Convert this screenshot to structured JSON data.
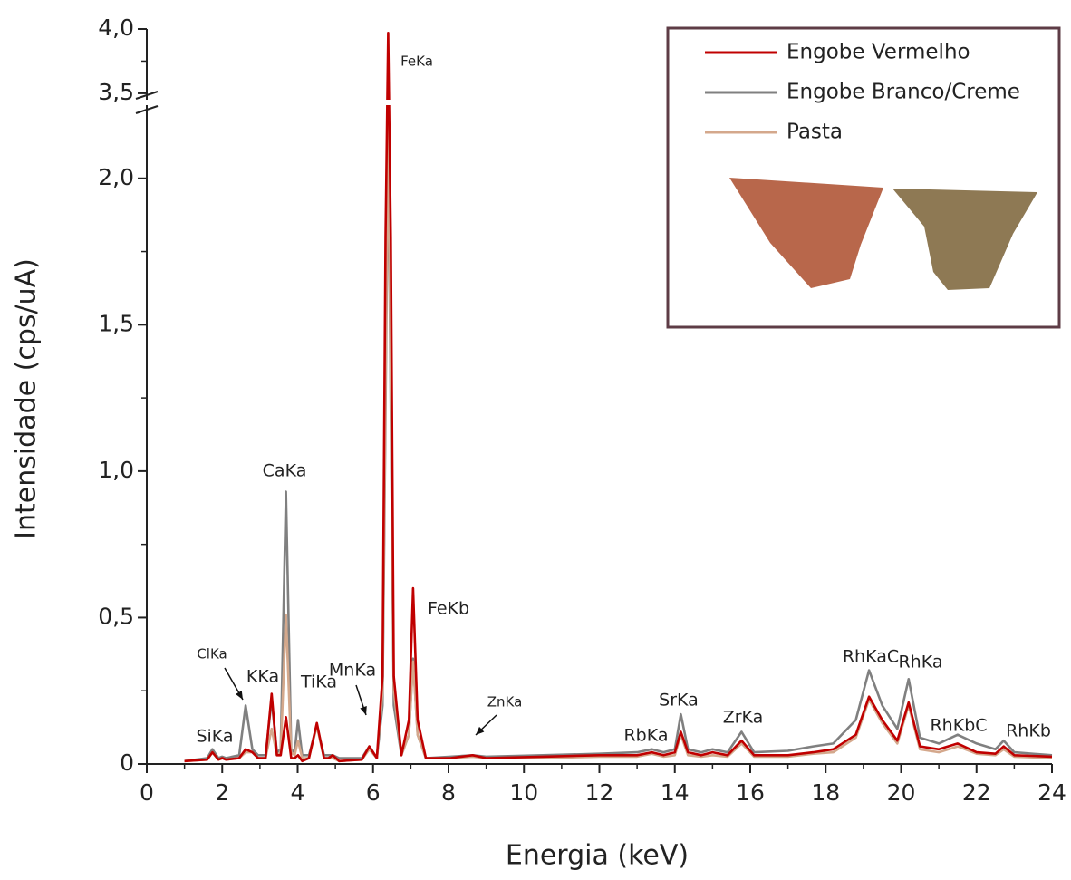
{
  "chart_data": {
    "type": "line",
    "xlabel": "Energia (keV)",
    "ylabel": "Intensidade (cps/uA)",
    "xlim": [
      0,
      24
    ],
    "xticks": [
      0,
      2,
      4,
      6,
      8,
      10,
      12,
      14,
      16,
      18,
      20,
      22,
      24
    ],
    "xminorticks": [
      1,
      3,
      5,
      7,
      9,
      11,
      13,
      15,
      17,
      19,
      21,
      23
    ],
    "ylim": [
      0,
      4.0
    ],
    "ybreak": [
      2.25,
      3.45
    ],
    "yticks": [
      0,
      {
        "value": 0.5,
        "label": "0,5"
      },
      {
        "value": 1.0,
        "label": "1,0"
      },
      {
        "value": 1.5,
        "label": "1,5"
      },
      {
        "value": 2.0,
        "label": "2,0"
      },
      {
        "value": 3.5,
        "label": "3,5"
      },
      {
        "value": 4.0,
        "label": "4,0"
      }
    ],
    "yminorticks": [
      0.25,
      0.75,
      1.25,
      1.75,
      3.75
    ],
    "legend": "upper right",
    "x": [
      1.0,
      1.6,
      1.74,
      1.9,
      2.0,
      2.1,
      2.45,
      2.62,
      2.8,
      2.95,
      3.15,
      3.31,
      3.45,
      3.55,
      3.69,
      3.83,
      3.92,
      4.01,
      4.12,
      4.3,
      4.51,
      4.7,
      4.82,
      4.93,
      5.1,
      5.7,
      5.9,
      6.1,
      6.25,
      6.33,
      6.4,
      6.47,
      6.55,
      6.75,
      6.95,
      7.06,
      7.18,
      7.4,
      8.05,
      8.64,
      9.0,
      10.5,
      12.0,
      13.0,
      13.39,
      13.7,
      14.0,
      14.16,
      14.35,
      14.7,
      15.0,
      15.4,
      15.77,
      16.1,
      17.0,
      17.67,
      18.2,
      18.8,
      19.15,
      19.5,
      19.9,
      20.2,
      20.5,
      21.0,
      21.5,
      22.0,
      22.5,
      22.72,
      23.0,
      24.0
    ],
    "series": [
      {
        "name": "Engobe Branco/Creme",
        "color": "#808080",
        "values": [
          0.01,
          0.02,
          0.05,
          0.02,
          0.025,
          0.02,
          0.03,
          0.2,
          0.05,
          0.03,
          0.03,
          0.22,
          0.04,
          0.05,
          0.93,
          0.05,
          0.04,
          0.15,
          0.03,
          0.03,
          0.13,
          0.03,
          0.03,
          0.03,
          0.02,
          0.02,
          0.06,
          0.02,
          0.2,
          1.2,
          2.17,
          1.2,
          0.2,
          0.03,
          0.1,
          0.36,
          0.1,
          0.02,
          0.025,
          0.03,
          0.025,
          0.03,
          0.035,
          0.04,
          0.05,
          0.04,
          0.05,
          0.17,
          0.05,
          0.04,
          0.05,
          0.04,
          0.11,
          0.04,
          0.045,
          0.06,
          0.07,
          0.15,
          0.32,
          0.2,
          0.12,
          0.29,
          0.09,
          0.07,
          0.1,
          0.07,
          0.05,
          0.08,
          0.04,
          0.03
        ]
      },
      {
        "name": "Pasta",
        "color": "#d4a88c",
        "values": [
          0.01,
          0.015,
          0.04,
          0.015,
          0.02,
          0.015,
          0.02,
          0.04,
          0.04,
          0.02,
          0.02,
          0.12,
          0.03,
          0.04,
          0.51,
          0.04,
          0.03,
          0.08,
          0.02,
          0.02,
          0.13,
          0.02,
          0.02,
          0.02,
          0.01,
          0.015,
          0.05,
          0.02,
          0.25,
          1.3,
          2.2,
          1.3,
          0.25,
          0.03,
          0.1,
          0.35,
          0.1,
          0.02,
          0.02,
          0.025,
          0.02,
          0.02,
          0.025,
          0.025,
          0.035,
          0.025,
          0.03,
          0.1,
          0.03,
          0.025,
          0.03,
          0.025,
          0.07,
          0.025,
          0.025,
          0.035,
          0.04,
          0.09,
          0.22,
          0.14,
          0.07,
          0.2,
          0.05,
          0.04,
          0.06,
          0.035,
          0.03,
          0.05,
          0.025,
          0.02
        ]
      },
      {
        "name": "Engobe Vermelho",
        "color": "#c00000",
        "values": [
          0.01,
          0.015,
          0.04,
          0.015,
          0.02,
          0.015,
          0.02,
          0.05,
          0.04,
          0.02,
          0.02,
          0.24,
          0.03,
          0.03,
          0.16,
          0.02,
          0.02,
          0.03,
          0.01,
          0.02,
          0.14,
          0.02,
          0.02,
          0.03,
          0.01,
          0.015,
          0.06,
          0.02,
          0.3,
          1.8,
          3.97,
          1.8,
          0.3,
          0.03,
          0.15,
          0.6,
          0.15,
          0.02,
          0.02,
          0.03,
          0.02,
          0.025,
          0.03,
          0.03,
          0.04,
          0.03,
          0.04,
          0.11,
          0.04,
          0.03,
          0.04,
          0.03,
          0.08,
          0.03,
          0.03,
          0.04,
          0.05,
          0.1,
          0.23,
          0.15,
          0.08,
          0.21,
          0.06,
          0.05,
          0.07,
          0.04,
          0.035,
          0.06,
          0.03,
          0.025
        ]
      }
    ],
    "legend_order": [
      "Engobe Vermelho",
      "Engobe Branco/Creme",
      "Pasta"
    ],
    "annotations": [
      "SiKa",
      "ClKa",
      "KKa",
      "CaKa",
      "TiKa",
      "MnKa",
      "FeKa",
      "FeKb",
      "ZnKa",
      "RbKa",
      "SrKa",
      "ZrKa",
      "RhKaC",
      "RhKa",
      "RhKbC",
      "RhKb"
    ]
  }
}
